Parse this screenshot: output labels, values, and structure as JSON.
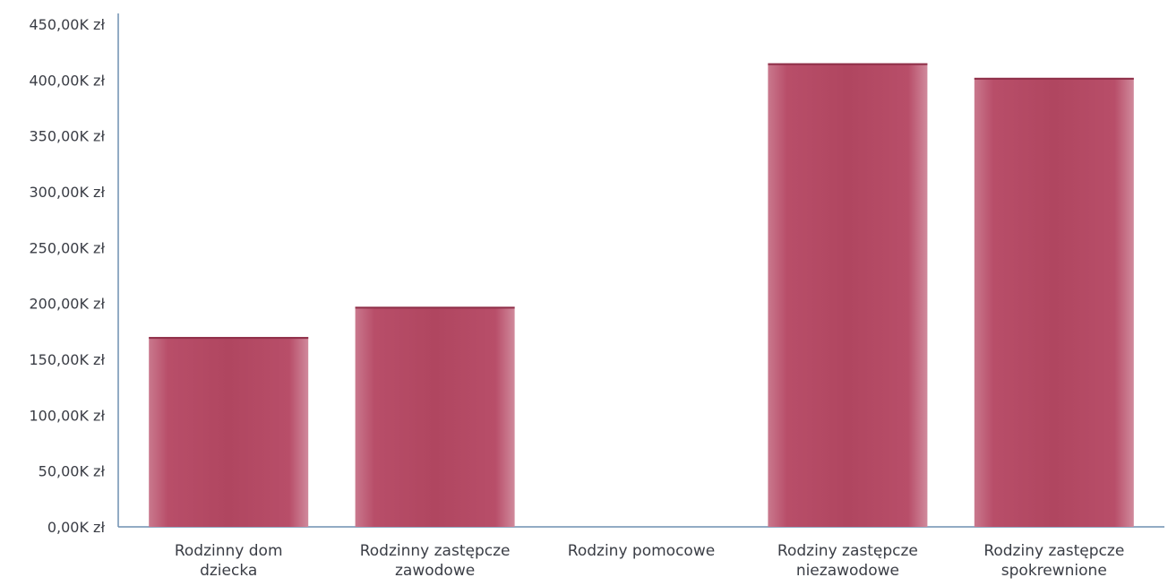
{
  "chart_data": {
    "type": "bar",
    "categories": [
      [
        "Rodzinny dom",
        "dziecka"
      ],
      [
        "Rodzinny zastępcze",
        "zawodowe"
      ],
      [
        "Rodziny pomocowe"
      ],
      [
        "Rodziny zastępcze",
        "niezawodowe"
      ],
      [
        "Rodziny zastępcze",
        "spokrewnione"
      ]
    ],
    "values": [
      170,
      197,
      0,
      415,
      402
    ],
    "value_unit": "K zł",
    "ylim": [
      0,
      450
    ],
    "yticks": [
      "0,00K zł",
      "50,00K zł",
      "100,00K zł",
      "150,00K zł",
      "200,00K zł",
      "250,00K zł",
      "300,00K zł",
      "350,00K zł",
      "400,00K zł",
      "450,00K zł"
    ],
    "title": "",
    "xlabel": "",
    "ylabel": "",
    "grid": false,
    "bar_color": "#b84a66",
    "bar_edge_color": "#c96a80"
  }
}
